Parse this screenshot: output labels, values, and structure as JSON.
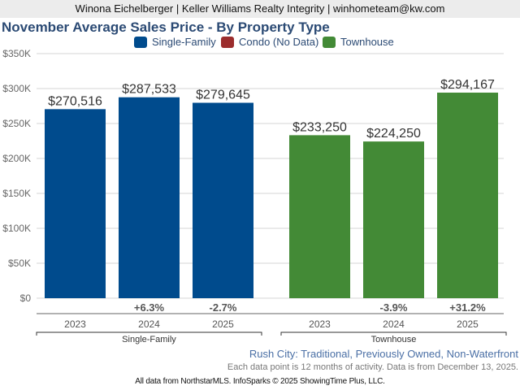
{
  "header": {
    "agent_line": "Winona Eichelberger | Keller Williams Realty Integrity | winhometeam@kw.com"
  },
  "colors": {
    "single_family": "#004b8d",
    "condo": "#9b2d2d",
    "townhouse": "#438a36",
    "title": "#2b4a74",
    "subtitle": "#4a6fa5"
  },
  "chart_data": {
    "type": "bar",
    "title": "November Average Sales Price - By Property Type",
    "xlabel": "",
    "ylabel": "",
    "ylim": [
      0,
      350000
    ],
    "yticks": [
      {
        "value": 0,
        "label": "$0"
      },
      {
        "value": 50000,
        "label": "$50K"
      },
      {
        "value": 100000,
        "label": "$100K"
      },
      {
        "value": 150000,
        "label": "$150K"
      },
      {
        "value": 200000,
        "label": "$200K"
      },
      {
        "value": 250000,
        "label": "$250K"
      },
      {
        "value": 300000,
        "label": "$300K"
      },
      {
        "value": 350000,
        "label": "$350K"
      }
    ],
    "grid": true,
    "legend_position": "top-center",
    "legend": [
      {
        "name": "Single-Family",
        "color_key": "single_family"
      },
      {
        "name": "Condo (No Data)",
        "color_key": "condo"
      },
      {
        "name": "Townhouse",
        "color_key": "townhouse"
      }
    ],
    "groups": [
      {
        "name": "Single-Family",
        "color_key": "single_family",
        "categories": [
          "2023",
          "2024",
          "2025"
        ],
        "values": [
          270516,
          287533,
          279645
        ],
        "value_labels": [
          "$270,516",
          "$287,533",
          "$279,645"
        ],
        "changes": [
          "",
          "+6.3%",
          "-2.7%"
        ]
      },
      {
        "name": "Townhouse",
        "color_key": "townhouse",
        "categories": [
          "2023",
          "2024",
          "2025"
        ],
        "values": [
          233250,
          224250,
          294167
        ],
        "value_labels": [
          "$233,250",
          "$224,250",
          "$294,167"
        ],
        "changes": [
          "",
          "-3.9%",
          "+31.2%"
        ]
      }
    ]
  },
  "subtitle": "Rush City: Traditional, Previously Owned, Non-Waterfront",
  "note": "Each data point is 12 months of activity. Data is from December 13, 2025.",
  "footer": "All data from NorthstarMLS. InfoSparks © 2025 ShowingTime Plus, LLC."
}
